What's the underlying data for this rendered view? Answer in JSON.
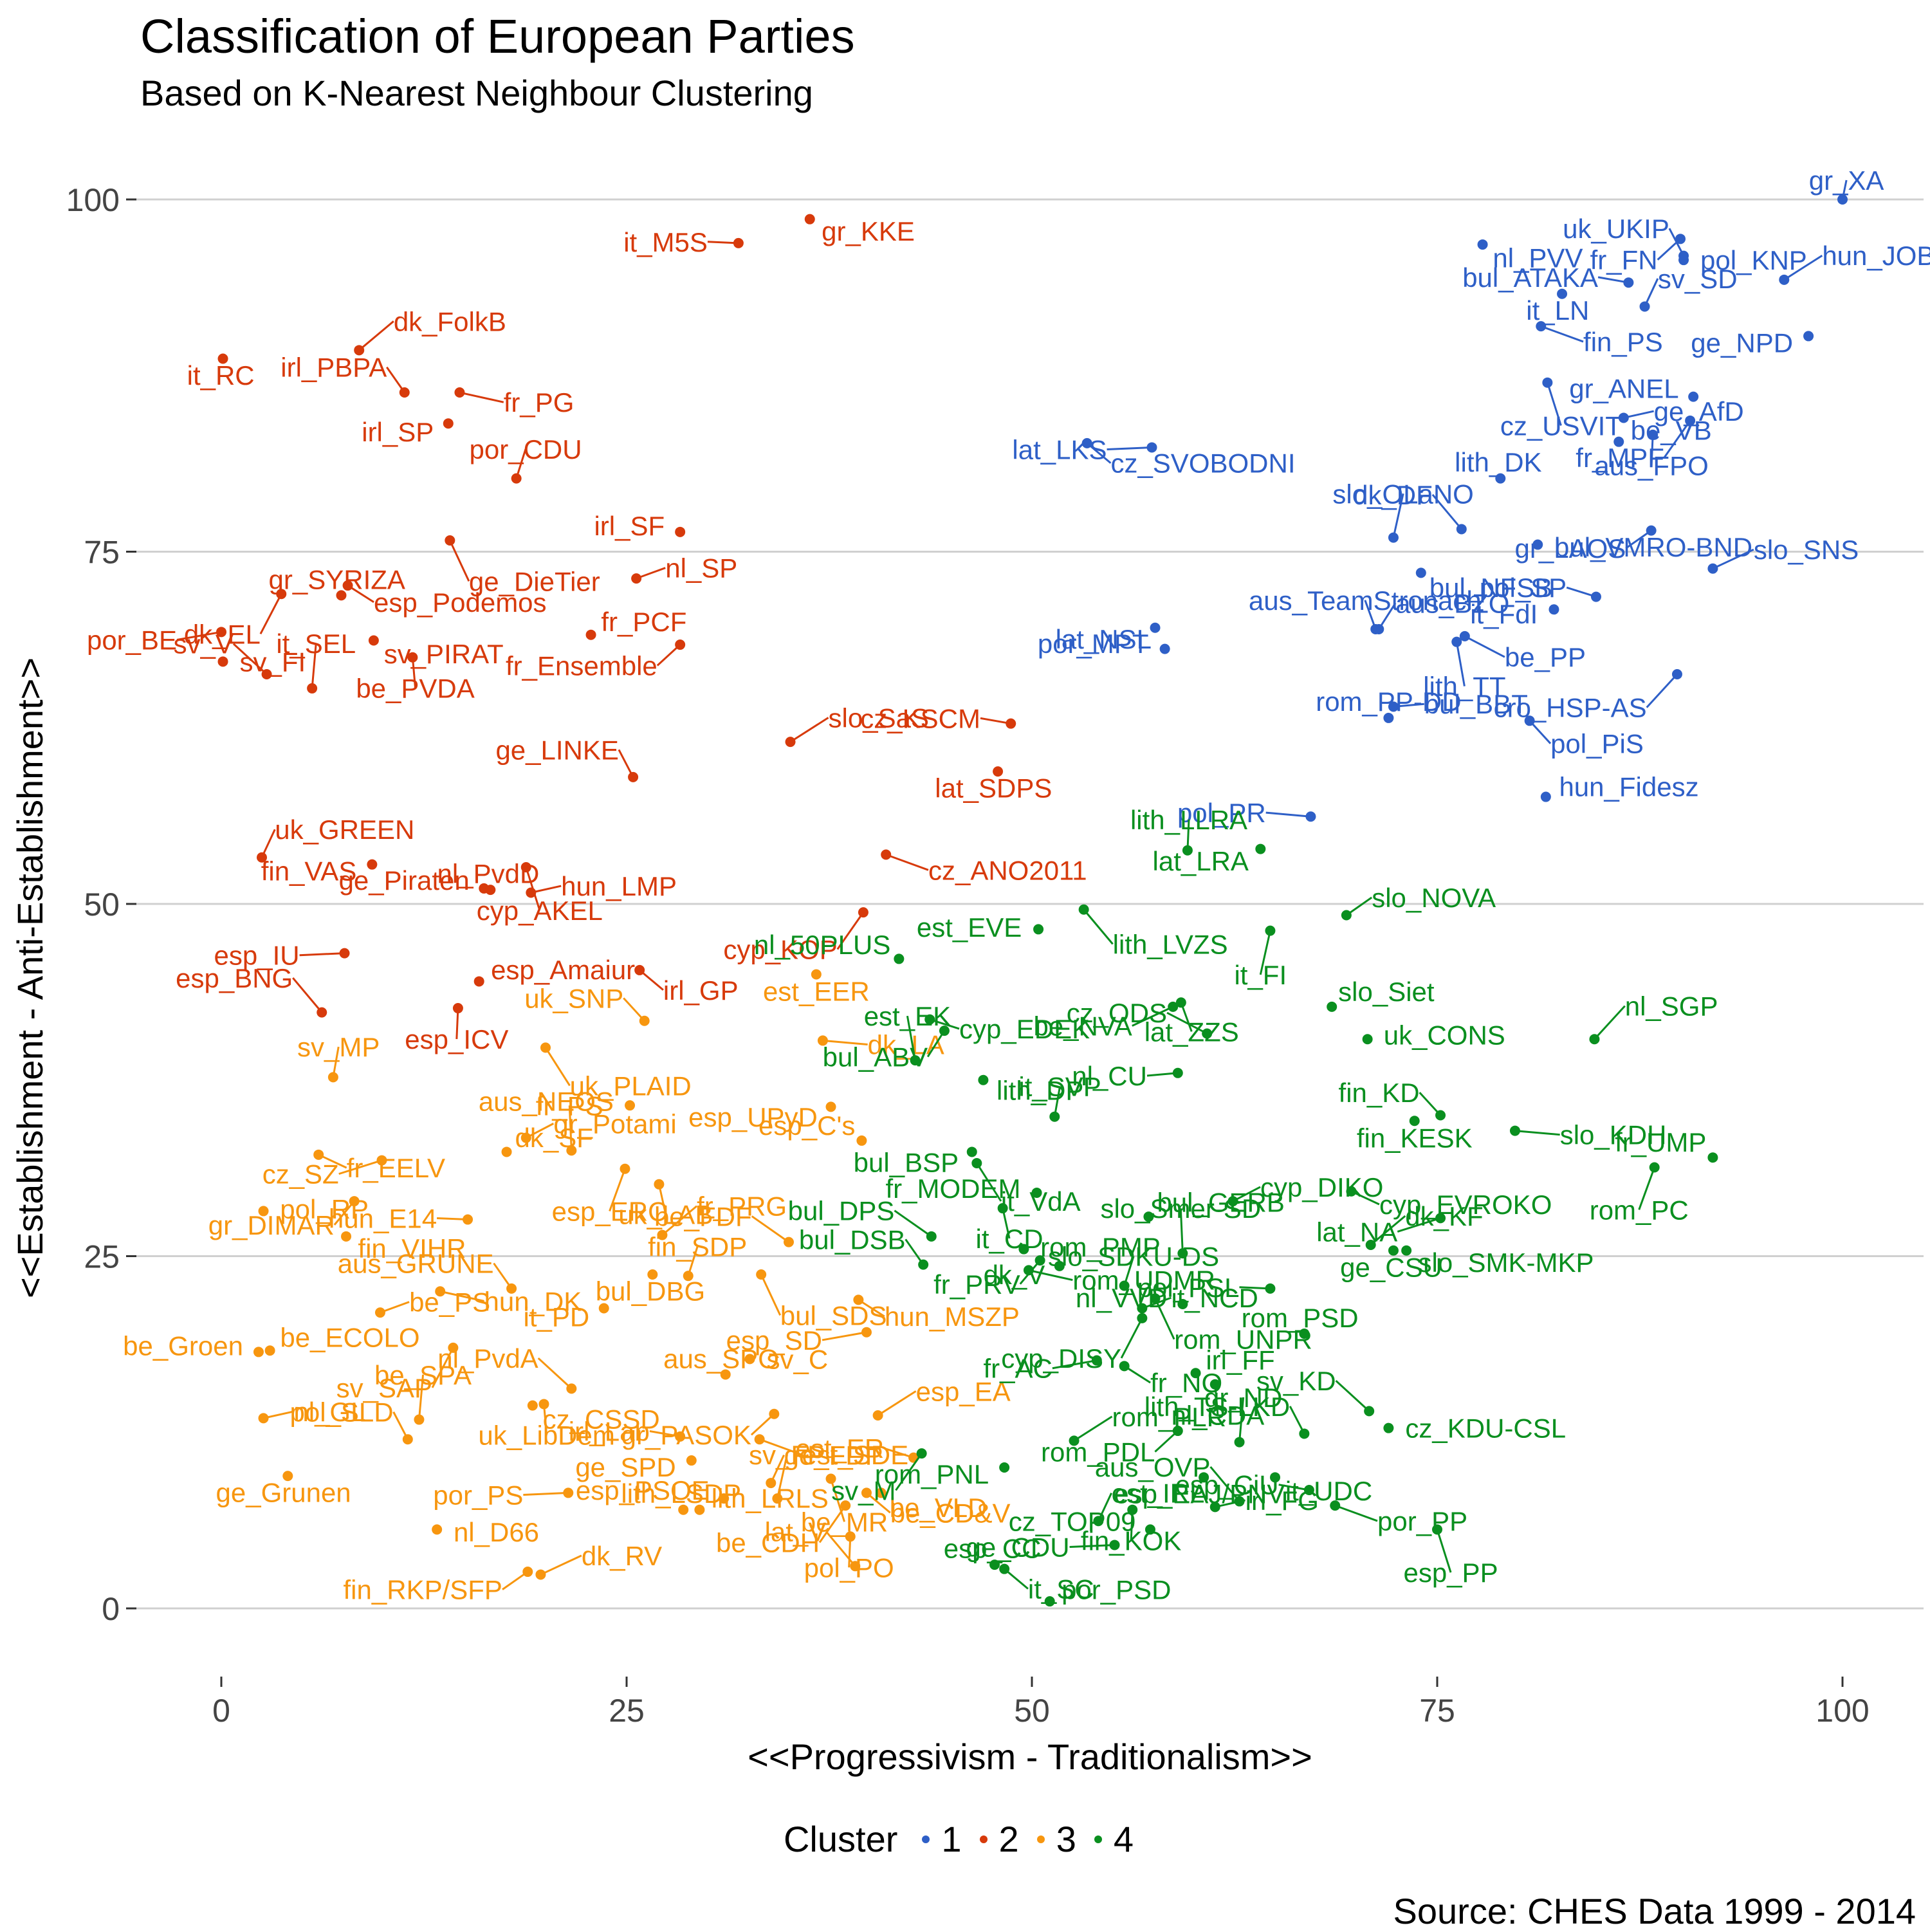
{
  "title": "Classification of European Parties",
  "subtitle": "Based on K-Nearest Neighbour Clustering",
  "source": "Source: CHES Data 1999 - 2014",
  "chart_data": {
    "type": "scatter",
    "title": "Classification of European Parties",
    "subtitle": "Based on K-Nearest Neighbour Clustering",
    "xlabel": "<<Progressivism - Traditionalism>>",
    "ylabel": "<<Establishment - Anti-Establishment>>",
    "xlim": [
      -5,
      105
    ],
    "ylim": [
      -5,
      105
    ],
    "xticks": [
      0,
      25,
      50,
      75,
      100
    ],
    "yticks": [
      0,
      25,
      50,
      75,
      100
    ],
    "grid": "horizontal major",
    "legend": {
      "title": "Cluster",
      "position": "bottom",
      "entries": [
        "1",
        "2",
        "3",
        "4"
      ]
    },
    "colors": {
      "1": "#2e5fc7",
      "2": "#d73a0b",
      "3": "#f7960f",
      "4": "#0a8f1f"
    },
    "series": [
      {
        "name": "1",
        "points": [
          [
            "pol_KNP",
            90.2,
            95.7
          ],
          [
            "fr_FN",
            90.0,
            97.2
          ],
          [
            "gr_XA",
            100.0,
            100.0
          ],
          [
            "nl_PVV",
            77.8,
            96.8
          ],
          [
            "bul_ATAKA",
            86.8,
            94.1
          ],
          [
            "hun_JOBBIK",
            96.4,
            94.3
          ],
          [
            "it_LN",
            82.7,
            93.3
          ],
          [
            "uk_UKIP",
            90.2,
            96.0
          ],
          [
            "fin_PS",
            81.4,
            91.0
          ],
          [
            "ge_NPD",
            97.9,
            90.3
          ],
          [
            "sv_SD",
            87.8,
            92.4
          ],
          [
            "cz_USVIT",
            81.8,
            87.0
          ],
          [
            "gr_ANEL",
            90.8,
            86.0
          ],
          [
            "ge_AfD",
            86.5,
            84.5
          ],
          [
            "fr_MPF",
            90.6,
            84.3
          ],
          [
            "lith_DK",
            78.9,
            80.2
          ],
          [
            "cz_SVOBODNI",
            53.4,
            82.7
          ],
          [
            "lat_LKS",
            57.4,
            82.4
          ],
          [
            "be_VB",
            86.2,
            82.8
          ],
          [
            "aus_FPO",
            88.3,
            83.3
          ],
          [
            "dk_DF",
            76.5,
            76.6
          ],
          [
            "bul_VMRO-BND",
            81.2,
            75.5
          ],
          [
            "gr_LAOS",
            88.2,
            76.5
          ],
          [
            "slo_OLaNO",
            72.3,
            76.0
          ],
          [
            "bul_NFSB",
            74.0,
            73.5
          ],
          [
            "pol_SP",
            84.8,
            71.8
          ],
          [
            "slo_SNS",
            92.0,
            73.8
          ],
          [
            "por_MPT",
            57.6,
            69.6
          ],
          [
            "aus_TeamStronach",
            71.2,
            69.5
          ],
          [
            "be_PP",
            76.7,
            69.0
          ],
          [
            "it_FdI",
            82.2,
            70.9
          ],
          [
            "aus_BZO",
            71.4,
            69.5
          ],
          [
            "lith_TT",
            76.2,
            68.6
          ],
          [
            "lat_NSL",
            58.2,
            68.1
          ],
          [
            "bul_BBT",
            72.3,
            64.0
          ],
          [
            "cro_HSP-AS",
            89.8,
            66.3
          ],
          [
            "rom_PP-DD",
            72.0,
            63.2
          ],
          [
            "pol_PiS",
            80.7,
            63.0
          ],
          [
            "pol_PR",
            67.2,
            56.2
          ],
          [
            "hun_Fidesz",
            81.7,
            57.6
          ]
        ]
      },
      {
        "name": "2",
        "points": [
          [
            "gr_KKE",
            36.3,
            98.6
          ],
          [
            "it_M5S",
            31.9,
            96.9
          ],
          [
            "dk_FolkB",
            8.5,
            89.3
          ],
          [
            "it_RC",
            0.1,
            88.7
          ],
          [
            "irl_PBPA",
            11.3,
            86.3
          ],
          [
            "fr_PG",
            14.7,
            86.3
          ],
          [
            "irl_SP",
            14.0,
            84.1
          ],
          [
            "por_CDU",
            18.2,
            80.2
          ],
          [
            "ge_DieTier",
            14.1,
            75.8
          ],
          [
            "irl_SF",
            28.3,
            76.4
          ],
          [
            "nl_SP",
            25.6,
            73.1
          ],
          [
            "dk_EL",
            3.7,
            72.0
          ],
          [
            "gr_SYRIZA",
            7.4,
            71.9
          ],
          [
            "esp_Podemos",
            7.8,
            72.6
          ],
          [
            "por_BE",
            0.0,
            69.3
          ],
          [
            "fr_PCF",
            22.8,
            69.1
          ],
          [
            "be_PVDA",
            11.8,
            67.5
          ],
          [
            "sv_V",
            2.8,
            66.3
          ],
          [
            "sv_FI",
            0.1,
            67.2
          ],
          [
            "fr_Ensemble",
            28.3,
            68.4
          ],
          [
            "it_SEL",
            5.6,
            65.3
          ],
          [
            "sv_PIRAT",
            9.4,
            68.7
          ],
          [
            "cz_KSCM",
            48.7,
            62.8
          ],
          [
            "slo_SaS",
            35.1,
            61.5
          ],
          [
            "lat_SDPS",
            47.9,
            59.4
          ],
          [
            "ge_LINKE",
            25.4,
            59.0
          ],
          [
            "cz_ANO2011",
            41.0,
            53.5
          ],
          [
            "fin_VAS",
            9.3,
            52.8
          ],
          [
            "uk_GREEN",
            2.5,
            53.3
          ],
          [
            "cyp_AKEL",
            18.8,
            52.6
          ],
          [
            "ge_Piraten",
            16.2,
            51.1
          ],
          [
            "hun_LMP",
            19.1,
            50.8
          ],
          [
            "cyp_KOP",
            39.6,
            49.4
          ],
          [
            "nl_PvdD",
            16.6,
            51.0
          ],
          [
            "irl_GP",
            25.8,
            45.3
          ],
          [
            "esp_IU",
            7.6,
            46.5
          ],
          [
            "esp_Amaiur",
            15.9,
            44.5
          ],
          [
            "esp_ICV",
            14.6,
            42.6
          ],
          [
            "esp_BNG",
            6.2,
            42.3
          ]
        ]
      },
      {
        "name": "3",
        "points": [
          [
            "est_EER",
            36.7,
            45.0
          ],
          [
            "uk_SNP",
            26.1,
            41.7
          ],
          [
            "dk_LA",
            37.1,
            40.3
          ],
          [
            "esp_UPyD",
            37.6,
            35.6
          ],
          [
            "sv_MP",
            6.9,
            37.7
          ],
          [
            "uk_PLAID",
            20.0,
            39.8
          ],
          [
            "aus_NEOS",
            25.2,
            35.7
          ],
          [
            "gr_Potami",
            18.8,
            33.4
          ],
          [
            "esp_ERC",
            24.9,
            31.2
          ],
          [
            "esp_C's",
            39.5,
            33.2
          ],
          [
            "fr_EELV",
            6.0,
            32.2
          ],
          [
            "cz_SZ",
            9.9,
            31.8
          ],
          [
            "dk_SF",
            17.6,
            32.4
          ],
          [
            "uk_LAB",
            27.0,
            30.1
          ],
          [
            "be_FDF",
            35.0,
            26.0
          ],
          [
            "pol_RP",
            2.6,
            28.2
          ],
          [
            "gr_DIMAR",
            8.2,
            28.9
          ],
          [
            "fr_PS",
            21.6,
            32.5
          ],
          [
            "fin_VIHR",
            7.7,
            26.4
          ],
          [
            "hun_E14",
            15.2,
            27.6
          ],
          [
            "fr_PRG",
            27.2,
            26.5
          ],
          [
            "bul_DBG",
            26.6,
            23.7
          ],
          [
            "aus_GRUNE",
            17.9,
            22.7
          ],
          [
            "hun_DK",
            13.5,
            22.5
          ],
          [
            "it_PD",
            23.6,
            21.3
          ],
          [
            "fin_SDP",
            28.8,
            23.6
          ],
          [
            "bul_SDS",
            33.3,
            23.7
          ],
          [
            "be_Groen",
            2.3,
            18.2
          ],
          [
            "be_PS",
            9.8,
            21.0
          ],
          [
            "sv_SAP",
            14.3,
            18.5
          ],
          [
            "aus_SPO",
            31.1,
            16.6
          ],
          [
            "hun_MSZP",
            39.3,
            21.9
          ],
          [
            "esp_SD",
            39.8,
            19.6
          ],
          [
            "be_ECOLO",
            3.0,
            18.3
          ],
          [
            "uk_LibDem",
            19.9,
            14.5
          ],
          [
            "nl_PvdA",
            21.6,
            15.6
          ],
          [
            "sv_C",
            32.6,
            17.7
          ],
          [
            "gr_PASOK",
            34.1,
            13.8
          ],
          [
            "be_SPA",
            12.2,
            13.4
          ],
          [
            "cz_CSSD",
            19.2,
            14.4
          ],
          [
            "irl_Lab",
            28.3,
            12.2
          ],
          [
            "esp_EA",
            40.5,
            13.7
          ],
          [
            "ge_Grunen",
            4.1,
            9.4
          ],
          [
            "pol_SLD",
            11.5,
            12.0
          ],
          [
            "est_SDE",
            33.2,
            12.0
          ],
          [
            "ge_SPD",
            29.0,
            10.5
          ],
          [
            "ge_FDP",
            33.9,
            8.9
          ],
          [
            "be_MR",
            37.6,
            9.2
          ],
          [
            "esp_PSOE",
            31.0,
            7.8
          ],
          [
            "nl_GL",
            2.6,
            13.5
          ],
          [
            "be_CDH",
            38.5,
            7.3
          ],
          [
            "lith_LSDP",
            28.5,
            7.0
          ],
          [
            "be_CD&V",
            39.8,
            8.2
          ],
          [
            "por_PS",
            21.4,
            8.2
          ],
          [
            "lith_LRLS",
            29.5,
            7.0
          ],
          [
            "pol_PO",
            38.8,
            5.1
          ],
          [
            "lat_V",
            39.1,
            3.0
          ],
          [
            "nl_D66",
            13.3,
            5.6
          ],
          [
            "fin_RKP/SFP",
            18.9,
            2.6
          ],
          [
            "sv_FP",
            34.3,
            7.8
          ],
          [
            "be_VLD",
            40.7,
            8.2
          ],
          [
            "est_ER",
            42.7,
            10.7
          ],
          [
            "dk_RV",
            19.7,
            2.4
          ]
        ]
      },
      {
        "name": "4",
        "points": [
          [
            "lat_LRA",
            64.1,
            53.9
          ],
          [
            "lith_LLRA",
            59.6,
            53.8
          ],
          [
            "lith_LVZS",
            53.2,
            49.6
          ],
          [
            "est_EVE",
            50.4,
            48.2
          ],
          [
            "slo_NOVA",
            69.4,
            49.2
          ],
          [
            "it_FI",
            64.7,
            48.1
          ],
          [
            "nl_50PLUS",
            41.8,
            46.1
          ],
          [
            "cyp_EDEK",
            43.7,
            41.8
          ],
          [
            "be_NVA",
            58.7,
            42.7
          ],
          [
            "slo_Siet",
            68.5,
            42.7
          ],
          [
            "lat_ZZS",
            59.2,
            43.0
          ],
          [
            "cz_ODS",
            60.8,
            40.8
          ],
          [
            "uk_CONS",
            70.7,
            40.4
          ],
          [
            "bul_ABV",
            44.6,
            41.0
          ],
          [
            "est_EK",
            42.8,
            38.9
          ],
          [
            "lith_DP",
            47.0,
            37.5
          ],
          [
            "nl_CU",
            59.0,
            38.0
          ],
          [
            "nl_SGP",
            84.7,
            40.4
          ],
          [
            "fin_KESK",
            73.6,
            34.6
          ],
          [
            "fin_KD",
            75.2,
            35.0
          ],
          [
            "slo_KDH",
            79.8,
            33.9
          ],
          [
            "bul_BSP",
            46.3,
            32.4
          ],
          [
            "it_SVP",
            51.4,
            34.9
          ],
          [
            "it_VdA",
            46.6,
            31.6
          ],
          [
            "fr_MODEM",
            50.3,
            29.5
          ],
          [
            "cyp_DIKO",
            62.4,
            28.9
          ],
          [
            "rom_PC",
            88.4,
            31.3
          ],
          [
            "fr_UMP",
            92.0,
            32.0
          ],
          [
            "cyp_EVROKO",
            69.7,
            29.6
          ],
          [
            "lat_NA",
            75.2,
            27.7
          ],
          [
            "bul_GERB",
            57.2,
            27.8
          ],
          [
            "it_CD",
            48.2,
            28.4
          ],
          [
            "bul_DPS",
            43.8,
            26.4
          ],
          [
            "rom_PMP",
            49.5,
            25.5
          ],
          [
            "fr_PRV",
            50.5,
            24.7
          ],
          [
            "slo_Smer-SD",
            59.3,
            25.2
          ],
          [
            "slo_SMK-MKP",
            73.1,
            25.4
          ],
          [
            "pol_PSL",
            64.7,
            22.7
          ],
          [
            "dk_KF",
            70.9,
            25.8
          ],
          [
            "ge_CSU",
            72.3,
            25.4
          ],
          [
            "bul_DSB",
            43.3,
            24.4
          ],
          [
            "rom_UDMR",
            49.8,
            24.0
          ],
          [
            "dk_V",
            51.7,
            24.3
          ],
          [
            "slo_SDKU-DS",
            55.7,
            22.9
          ],
          [
            "rom_UNPR",
            57.6,
            22.0
          ],
          [
            "nl_VVD",
            59.3,
            21.6
          ],
          [
            "it_NCD",
            56.8,
            21.3
          ],
          [
            "cyp_DISY",
            56.8,
            20.6
          ],
          [
            "rom_PSD",
            66.8,
            19.5
          ],
          [
            "fr_NO",
            55.7,
            17.2
          ],
          [
            "fr_AC",
            54.0,
            17.6
          ],
          [
            "irl_FF",
            60.1,
            16.7
          ],
          [
            "nl_CDA",
            61.3,
            15.9
          ],
          [
            "sv_KD",
            70.8,
            14.0
          ],
          [
            "cz_KDU-CSL",
            72.0,
            12.8
          ],
          [
            "rom_PDL",
            59.0,
            12.6
          ],
          [
            "gr_ND",
            62.8,
            11.8
          ],
          [
            "it_UDC",
            65.0,
            9.3
          ],
          [
            "esp_CiU",
            67.1,
            8.4
          ],
          [
            "rom_PLR",
            52.6,
            11.9
          ],
          [
            "esp_EAJ/PNV",
            60.6,
            9.3
          ],
          [
            "lith_TS-LKD",
            66.8,
            12.4
          ],
          [
            "por_PP",
            68.7,
            7.3
          ],
          [
            "rom_PNL",
            48.3,
            10.0
          ],
          [
            "est_IRL",
            54.1,
            6.2
          ],
          [
            "esp_PP",
            75.0,
            5.6
          ],
          [
            "cz_TOP09",
            57.3,
            5.6
          ],
          [
            "irl_FG",
            61.3,
            7.2
          ],
          [
            "sv_M",
            43.2,
            11.0
          ],
          [
            "esp_CC",
            47.7,
            3.1
          ],
          [
            "it_SC",
            48.3,
            2.8
          ],
          [
            "ge_CDU",
            55.1,
            4.5
          ],
          [
            "por_PSD",
            51.1,
            0.5
          ],
          [
            "fin_KOK",
            56.2,
            7.0
          ],
          [
            "aus_OVP",
            62.8,
            7.6
          ]
        ]
      }
    ]
  }
}
